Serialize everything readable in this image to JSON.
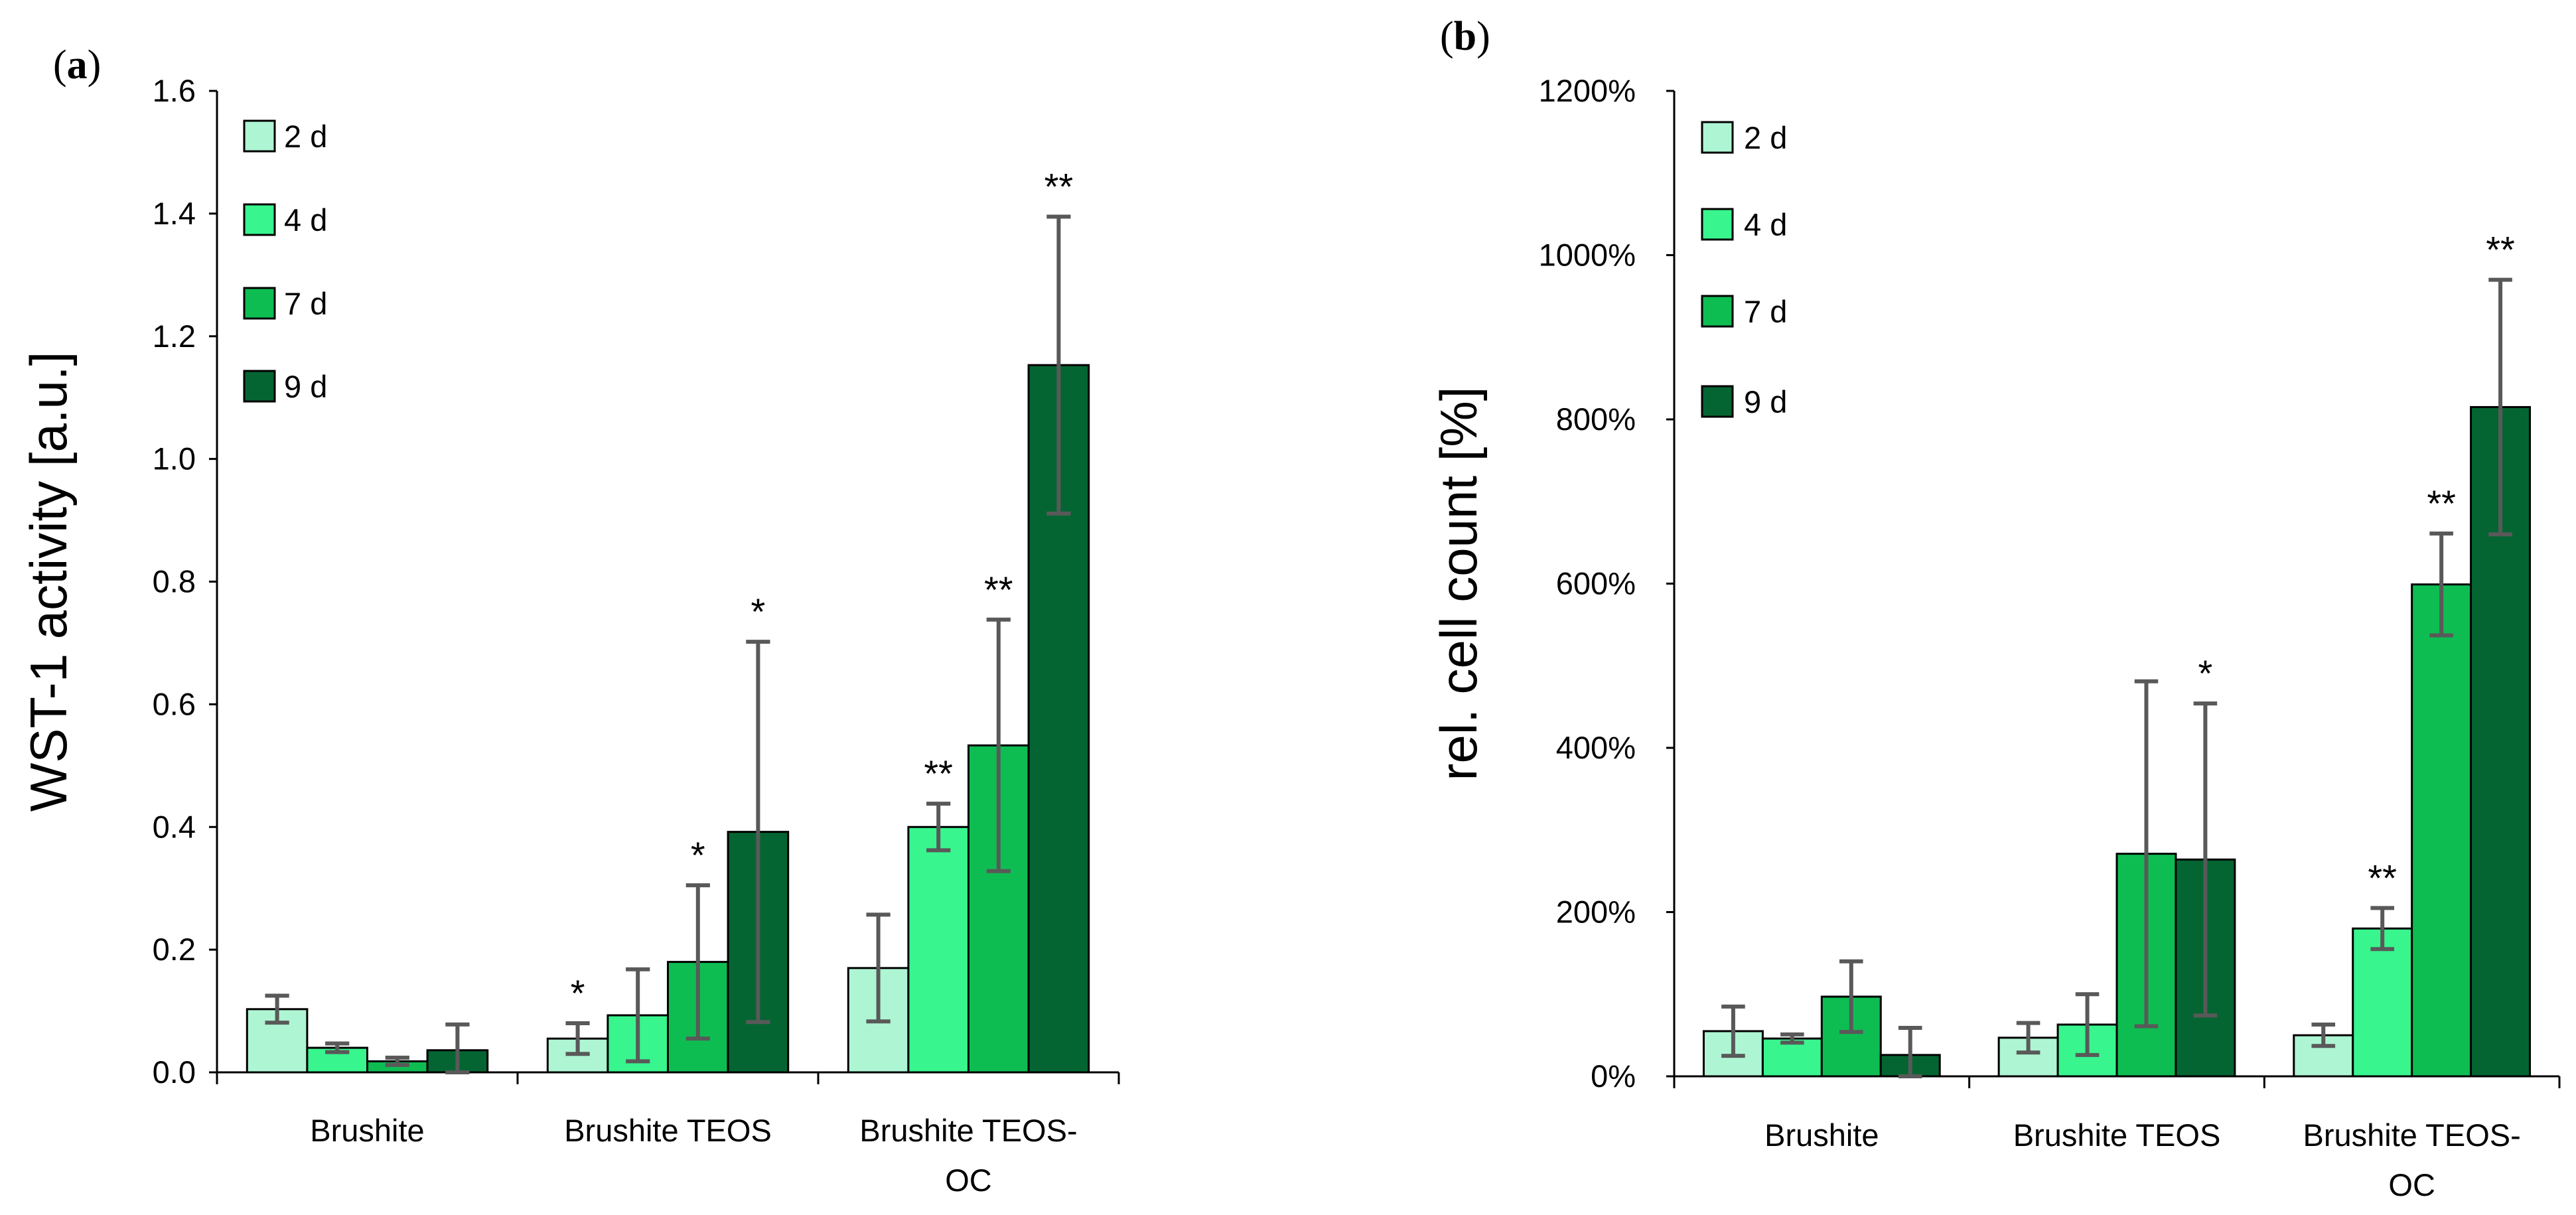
{
  "panels": [
    {
      "label_prefix": "(",
      "label_letter": "a",
      "label_suffix": ")",
      "chart_data": {
        "type": "bar",
        "ylabel": "WST-1 activity [a.u.]",
        "xlabel": "",
        "ylim": [
          0,
          1.6
        ],
        "yticks": [
          "0.0",
          "0.2",
          "0.4",
          "0.6",
          "0.8",
          "1.0",
          "1.2",
          "1.4",
          "1.6"
        ],
        "categories": [
          {
            "lines": [
              "Brushite"
            ]
          },
          {
            "lines": [
              "Brushite TEOS"
            ]
          },
          {
            "lines": [
              "Brushite TEOS-",
              "OC"
            ]
          }
        ],
        "series": [
          {
            "name": "2 d",
            "color": "#aef5d3",
            "values": [
              0.103,
              0.055,
              0.17
            ],
            "errors": [
              0.022,
              0.025,
              0.087
            ],
            "sig": [
              "",
              "*",
              ""
            ]
          },
          {
            "name": "4 d",
            "color": "#38f58e",
            "values": [
              0.04,
              0.093,
              0.4
            ],
            "errors": [
              0.007,
              0.075,
              0.038
            ],
            "sig": [
              "",
              "",
              "**"
            ]
          },
          {
            "name": "7 d",
            "color": "#0ebd52",
            "values": [
              0.018,
              0.18,
              0.533
            ],
            "errors": [
              0.006,
              0.125,
              0.205
            ],
            "sig": [
              "",
              "*",
              "**"
            ]
          },
          {
            "name": "9 d",
            "color": "#056532",
            "values": [
              0.036,
              0.392,
              1.153
            ],
            "errors": [
              0.042,
              0.31,
              0.242
            ],
            "sig": [
              "",
              "*",
              "**"
            ]
          }
        ],
        "legend_position": "top-left",
        "grid": false
      }
    },
    {
      "label_prefix": "(",
      "label_letter": "b",
      "label_suffix": ")",
      "chart_data": {
        "type": "bar",
        "ylabel": "rel. cell count [%]",
        "xlabel": "",
        "ylim": [
          0,
          1200
        ],
        "yticks": [
          "0%",
          "200%",
          "400%",
          "600%",
          "800%",
          "1000%",
          "1200%"
        ],
        "categories": [
          {
            "lines": [
              "Brushite"
            ]
          },
          {
            "lines": [
              "Brushite TEOS"
            ]
          },
          {
            "lines": [
              "Brushite TEOS-",
              "OC"
            ]
          }
        ],
        "series": [
          {
            "name": "2 d",
            "color": "#aef5d3",
            "values": [
              55,
              47,
              50
            ],
            "errors": [
              30,
              18,
              13
            ],
            "sig": [
              "",
              "",
              ""
            ]
          },
          {
            "name": "4 d",
            "color": "#38f58e",
            "values": [
              46,
              63,
              180
            ],
            "errors": [
              5,
              37,
              25
            ],
            "sig": [
              "",
              "",
              "**"
            ]
          },
          {
            "name": "7 d",
            "color": "#0ebd52",
            "values": [
              97,
              271,
              599
            ],
            "errors": [
              43,
              210,
              62
            ],
            "sig": [
              "",
              "",
              "**"
            ]
          },
          {
            "name": "9 d",
            "color": "#056532",
            "values": [
              26,
              264,
              815
            ],
            "errors": [
              33,
              190,
              155
            ],
            "sig": [
              "",
              "*",
              "**"
            ]
          }
        ],
        "legend_position": "top-left",
        "grid": false
      }
    }
  ]
}
